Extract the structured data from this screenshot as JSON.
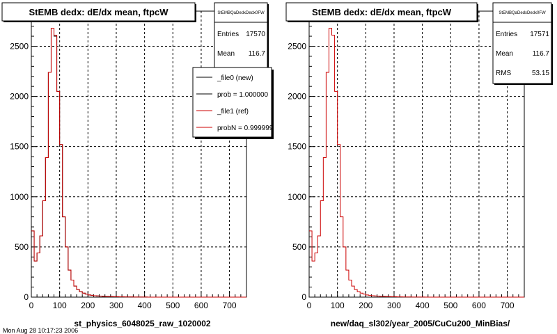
{
  "footer_text": "Mon Aug 28 10:17:23 2006",
  "chart_data": [
    {
      "type": "histogram",
      "title": "StEMB dedx: dE/dx mean, ftpcW",
      "xlabel": "st_physics_6048025_raw_1020002",
      "ylabel": "",
      "xlim": [
        0,
        760
      ],
      "ylim": [
        0,
        2850
      ],
      "x_ticks": [
        0,
        100,
        200,
        300,
        400,
        500,
        600,
        700
      ],
      "y_ticks": [
        0,
        500,
        1000,
        1500,
        2000,
        2500
      ],
      "grid": true,
      "bin_width": 10,
      "bin_start": 0,
      "series": [
        {
          "name": "_file0 (new)",
          "color": "#000000",
          "values": [
            660,
            360,
            440,
            610,
            960,
            1390,
            2240,
            2680,
            2600,
            2050,
            1520,
            800,
            500,
            270,
            170,
            110,
            75,
            55,
            40,
            30,
            22,
            18,
            14,
            12,
            10,
            8,
            7,
            6,
            5,
            4,
            4,
            3,
            3,
            2,
            2,
            2,
            1,
            1,
            1,
            1,
            1
          ]
        },
        {
          "name": "_file1 (ref)",
          "color": "#cc0000",
          "values": [
            660,
            360,
            440,
            610,
            960,
            1390,
            2240,
            2680,
            2610,
            2050,
            1520,
            800,
            500,
            270,
            170,
            110,
            75,
            55,
            40,
            30,
            22,
            18,
            14,
            12,
            10,
            8,
            7,
            6,
            5,
            4,
            4,
            3,
            3,
            2,
            2,
            2,
            1,
            1,
            1,
            1,
            1
          ]
        }
      ],
      "stats": {
        "header": "StEMBQaDedxDedx0FW",
        "rows": [
          {
            "label": "Entries",
            "value": "17570"
          },
          {
            "label": "Mean",
            "value": "116.7"
          }
        ]
      },
      "legend": {
        "placement": "top-right",
        "entries": [
          {
            "label": "_file0 (new)",
            "color": "#000000"
          },
          {
            "label": "prob = 1.000000",
            "color": "#000000"
          },
          {
            "label": "_file1 (ref)",
            "color": "#cc0000"
          },
          {
            "label": "probN = 0.999999",
            "color": "#cc0000"
          }
        ]
      }
    },
    {
      "type": "histogram",
      "title": "StEMB dedx: dE/dx mean, ftpcW",
      "xlabel": "new/daq_sl302/year_2005/CuCu200_MinBias/",
      "ylabel": "",
      "xlim": [
        0,
        760
      ],
      "ylim": [
        0,
        2850
      ],
      "x_ticks": [
        0,
        100,
        200,
        300,
        400,
        500,
        600,
        700
      ],
      "y_ticks": [
        0,
        500,
        1000,
        1500,
        2000,
        2500
      ],
      "grid": true,
      "bin_width": 10,
      "bin_start": 0,
      "series": [
        {
          "name": "",
          "color": "#cc0000",
          "values": [
            660,
            360,
            440,
            610,
            960,
            1390,
            2240,
            2680,
            2610,
            2050,
            1520,
            800,
            500,
            270,
            170,
            110,
            75,
            55,
            40,
            30,
            22,
            18,
            14,
            12,
            10,
            8,
            7,
            6,
            5,
            4,
            4,
            3,
            3,
            2,
            2,
            2,
            1,
            1,
            1,
            1,
            1
          ]
        }
      ],
      "stats": {
        "header": "StEMBQaDedxDedx0FW",
        "rows": [
          {
            "label": "Entries",
            "value": "17571"
          },
          {
            "label": "Mean",
            "value": "116.7"
          },
          {
            "label": "RMS",
            "value": "53.15"
          }
        ]
      }
    }
  ]
}
